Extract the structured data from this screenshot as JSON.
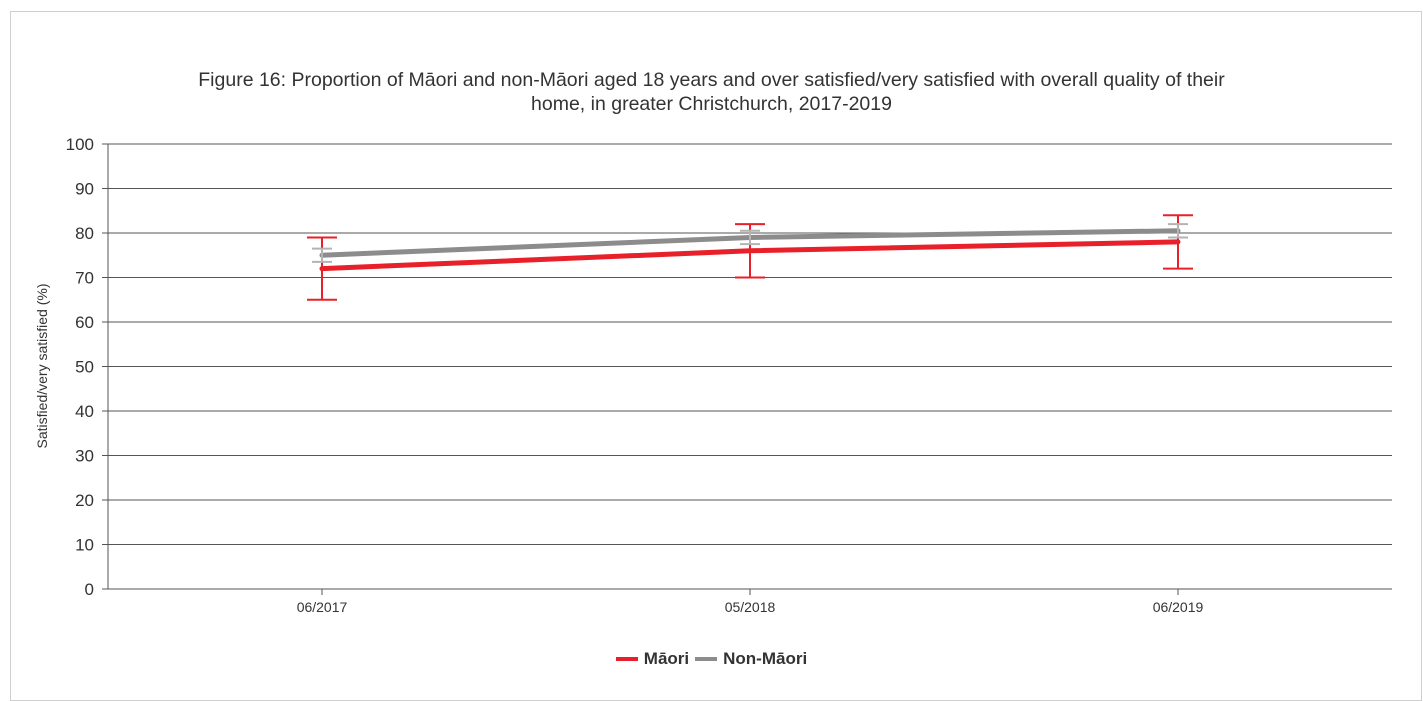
{
  "chart_data": {
    "type": "line",
    "title_line1": "Figure 16: Proportion of Māori and non-Māori aged 18 years and over satisfied/very satisfied with overall quality of their",
    "title_line2": "home, in greater Christchurch, 2017-2019",
    "xlabel": "",
    "ylabel": "Satisfied/very satisfied (%)",
    "ylim": [
      0,
      100
    ],
    "yticks": [
      0,
      10,
      20,
      30,
      40,
      50,
      60,
      70,
      80,
      90,
      100
    ],
    "categories": [
      "06/2017",
      "05/2018",
      "06/2019"
    ],
    "grid": true,
    "legend_position": "bottom",
    "series": [
      {
        "name": "Māori",
        "color": "#e8202a",
        "values": [
          72,
          76,
          78
        ],
        "error_low": [
          65,
          70,
          72
        ],
        "error_high": [
          79,
          82,
          84
        ]
      },
      {
        "name": "Non-Māori",
        "color": "#8c8c8c",
        "error_color": "#b3b3b3",
        "values": [
          75,
          79,
          80.5
        ],
        "error_low": [
          73.5,
          77.5,
          79
        ],
        "error_high": [
          76.5,
          80.5,
          82
        ]
      }
    ]
  }
}
